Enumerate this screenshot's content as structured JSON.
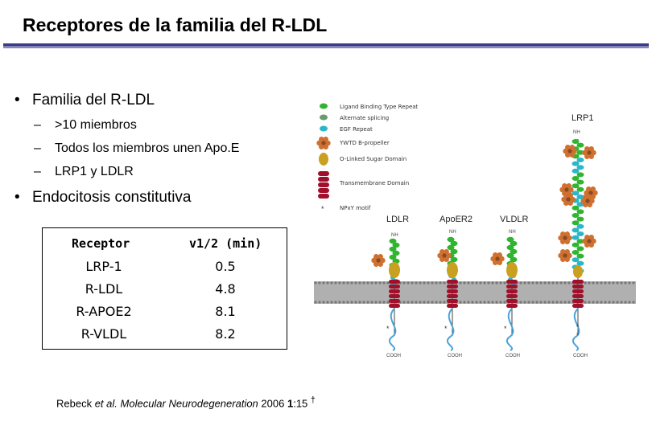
{
  "slide": {
    "title": "Receptores de la familia del R-LDL"
  },
  "bullets": [
    {
      "text": "Familia del R-LDL",
      "subitems": [
        ">10 miembros",
        "Todos los miembros unen Apo.E",
        "LRP1 y LDLR"
      ]
    },
    {
      "text": "Endocitosis constitutiva",
      "subitems": []
    }
  ],
  "table": {
    "headers": [
      "Receptor",
      "v1/2 (min)"
    ],
    "rows": [
      [
        "LRP-1",
        "0.5"
      ],
      [
        "R-LDL",
        "4.8"
      ],
      [
        "R-APOE2",
        "8.1"
      ],
      [
        "R-VLDL",
        "8.2"
      ]
    ]
  },
  "citation": {
    "authors": "Rebeck",
    "etal": "et al.",
    "journal": "Molecular Neurodegeneration",
    "year": "2006",
    "volume": "1",
    "page": ":15",
    "mark": "†"
  },
  "figure": {
    "legend": [
      {
        "label": "Ligand Binding Type Repeat",
        "color": "#2fb52f"
      },
      {
        "label": "Alternate splicing",
        "color": "#6a9a6a"
      },
      {
        "label": "EGF Repeat",
        "color": "#2ab8c9"
      },
      {
        "label": "YWTD B-propeller",
        "color": "#d07030"
      },
      {
        "label": "O-Linked Sugar Domain",
        "color": "#c9a020"
      },
      {
        "label": "Transmembrane Domain",
        "color": "#a0102a"
      },
      {
        "label": "NPxY motif",
        "color": "#333333"
      }
    ],
    "receptors": [
      "LDLR",
      "ApoER2",
      "VLDLR",
      "LRP1"
    ],
    "n_terminus": "NH",
    "c_terminus": "COOH",
    "colors": {
      "membrane": "#b0b0b0",
      "tail": "#4aa3d8",
      "ligand": "#2fb52f",
      "egf": "#2ab8c9",
      "propeller": "#d07030",
      "sugar": "#c9a020",
      "tm": "#a0102a"
    }
  }
}
